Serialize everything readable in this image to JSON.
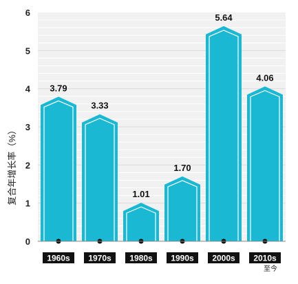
{
  "chart_data": {
    "type": "bar",
    "title": "",
    "xlabel": "",
    "ylabel": "复合年增长率（%）",
    "categories": [
      "1960s",
      "1970s",
      "1980s",
      "1990s",
      "2000s",
      "2010s"
    ],
    "category_notes": [
      "",
      "",
      "",
      "",
      "",
      "至今"
    ],
    "values": [
      3.79,
      3.33,
      1.01,
      1.7,
      5.64,
      4.06
    ],
    "value_labels": [
      "3.79",
      "3.33",
      "1.01",
      "1.70",
      "5.64",
      "4.06"
    ],
    "yticks": [
      "0",
      "1",
      "2",
      "3",
      "4",
      "5",
      "6"
    ],
    "ylim": [
      0,
      6
    ],
    "grid": true,
    "legend": "none",
    "colors": {
      "bar": "#1ab8d2",
      "bar_outline": "#ffffff",
      "plot_bg": "#f1f1f1",
      "grid": "#ffffff",
      "category_box": "#111111",
      "marker": "#111111"
    }
  }
}
